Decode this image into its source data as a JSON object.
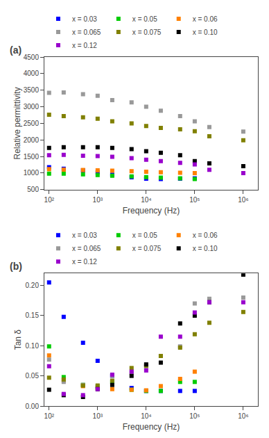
{
  "chart_data": [
    {
      "type": "scatter",
      "title": "(a)",
      "xlabel": "Frequency (Hz)",
      "ylabel": "Relative permittivity",
      "log": "x",
      "grid": false,
      "legend": "top",
      "marker": "square",
      "xlim": [
        80,
        2000000
      ],
      "xticks": [
        {
          "value": 100,
          "label": "10²"
        },
        {
          "value": 1000,
          "label": "10³"
        },
        {
          "value": 10000,
          "label": "10⁴"
        },
        {
          "value": 100000,
          "label": "10⁵"
        },
        {
          "value": 1000000,
          "label": "10⁶"
        }
      ],
      "ylim": [
        500,
        4500
      ],
      "yticks": [
        500,
        1000,
        1500,
        2000,
        2500,
        3000,
        3500,
        4000,
        4500
      ],
      "series": [
        {
          "name": "x = 0.03",
          "color": "#0000FF",
          "x": [
            100,
            200,
            500,
            1000,
            2000,
            5000,
            10000,
            20000,
            50000,
            100000
          ],
          "values": [
            1175,
            1130,
            1080,
            1020,
            950,
            870,
            830,
            820,
            830,
            840
          ]
        },
        {
          "name": "x = 0.05",
          "color": "#00CC00",
          "x": [
            100,
            200,
            500,
            1000,
            2000,
            5000,
            10000,
            20000,
            50000,
            100000
          ],
          "values": [
            980,
            980,
            960,
            940,
            920,
            900,
            880,
            860,
            840,
            820
          ]
        },
        {
          "name": "x = 0.06",
          "color": "#FF8000",
          "x": [
            100,
            200,
            500,
            1000,
            2000,
            5000,
            10000,
            20000,
            50000,
            100000
          ],
          "values": [
            1120,
            1105,
            1090,
            1080,
            1070,
            1055,
            1040,
            1025,
            1010,
            1000
          ]
        },
        {
          "name": "x = 0.065",
          "color": "#999999",
          "x": [
            100,
            200,
            500,
            1000,
            2000,
            5000,
            10000,
            20000,
            50000,
            100000,
            200000,
            1000000
          ],
          "values": [
            3420,
            3430,
            3380,
            3330,
            3200,
            3130,
            3000,
            2880,
            2720,
            2560,
            2390,
            2250
          ]
        },
        {
          "name": "x = 0.075",
          "color": "#808000",
          "x": [
            100,
            200,
            500,
            1000,
            2000,
            5000,
            10000,
            20000,
            50000,
            100000,
            200000,
            1000000
          ],
          "values": [
            2760,
            2720,
            2680,
            2640,
            2560,
            2500,
            2420,
            2360,
            2320,
            2260,
            2110,
            1990
          ]
        },
        {
          "name": "x = 0.10",
          "color": "#000000",
          "x": [
            100,
            200,
            500,
            1000,
            2000,
            5000,
            10000,
            20000,
            50000,
            100000,
            200000,
            1000000
          ],
          "values": [
            1760,
            1780,
            1780,
            1780,
            1760,
            1720,
            1660,
            1610,
            1540,
            1360,
            1290,
            1210
          ]
        },
        {
          "name": "x = 0.12",
          "color": "#9900CC",
          "x": [
            100,
            200,
            500,
            1000,
            2000,
            5000,
            10000,
            20000,
            50000,
            100000,
            200000,
            1000000
          ],
          "values": [
            1540,
            1550,
            1520,
            1510,
            1490,
            1450,
            1400,
            1360,
            1310,
            1260,
            1100,
            1000
          ]
        }
      ]
    },
    {
      "type": "scatter",
      "title": "(b)",
      "xlabel": "Frequency (Hz)",
      "ylabel": "Tan δ",
      "log": "x",
      "grid": false,
      "legend": "top",
      "marker": "square",
      "xlim": [
        80,
        2000000
      ],
      "xticks": [
        {
          "value": 100,
          "label": "10²"
        },
        {
          "value": 1000,
          "label": "10³"
        },
        {
          "value": 10000,
          "label": "10⁴"
        },
        {
          "value": 100000,
          "label": "10⁵"
        },
        {
          "value": 1000000,
          "label": "10⁶"
        }
      ],
      "ylim": [
        0.0,
        0.22
      ],
      "yticks": [
        {
          "value": 0.0,
          "label": "0.00"
        },
        0.05,
        {
          "value": 0.1,
          "label": "0.10"
        },
        0.15,
        {
          "value": 0.2,
          "label": "0.20"
        }
      ],
      "series": [
        {
          "name": "x = 0.03",
          "color": "#0000FF",
          "x": [
            100,
            200,
            500,
            1000,
            2000,
            5000,
            10000,
            20000,
            50000,
            100000
          ],
          "values": [
            0.205,
            0.148,
            0.105,
            0.075,
            0.05,
            0.03,
            0.025,
            0.025,
            0.025,
            0.025
          ]
        },
        {
          "name": "x = 0.05",
          "color": "#00CC00",
          "x": [
            100,
            200,
            500,
            1000,
            2000,
            5000,
            10000,
            20000,
            50000,
            100000
          ],
          "values": [
            0.099,
            0.048,
            0.035,
            0.032,
            0.04,
            0.027,
            0.025,
            0.025,
            0.04,
            0.04
          ]
        },
        {
          "name": "x = 0.06",
          "color": "#FF8000",
          "x": [
            100,
            200,
            500,
            1000,
            2000,
            5000,
            10000,
            20000,
            50000,
            100000
          ],
          "values": [
            0.084,
            0.042,
            0.033,
            0.03,
            0.028,
            0.027,
            0.026,
            0.033,
            0.045,
            0.057
          ]
        },
        {
          "name": "x = 0.065",
          "color": "#999999",
          "x": [
            100,
            200,
            500,
            1000,
            2000,
            5000,
            10000,
            20000,
            50000,
            100000,
            200000,
            1000000
          ],
          "values": [
            0.077,
            0.04,
            0.035,
            0.033,
            0.05,
            0.055,
            0.065,
            0.083,
            0.099,
            0.17,
            0.178,
            0.18
          ]
        },
        {
          "name": "x = 0.075",
          "color": "#808000",
          "x": [
            100,
            200,
            500,
            1000,
            2000,
            5000,
            10000,
            20000,
            50000,
            100000,
            200000,
            1000000
          ],
          "values": [
            0.047,
            0.044,
            0.034,
            0.034,
            0.042,
            0.063,
            0.067,
            0.083,
            0.097,
            0.119,
            0.138,
            0.156
          ]
        },
        {
          "name": "x = 0.10",
          "color": "#000000",
          "x": [
            100,
            200,
            500,
            1000,
            2000,
            5000,
            10000,
            20000,
            50000,
            100000,
            200000,
            1000000
          ],
          "values": [
            0.027,
            0.018,
            0.015,
            0.028,
            0.035,
            0.05,
            0.069,
            0.072,
            0.137,
            0.15,
            0.172,
            0.218
          ]
        },
        {
          "name": "x = 0.12",
          "color": "#9900CC",
          "x": [
            100,
            200,
            500,
            1000,
            2000,
            5000,
            10000,
            20000,
            50000,
            100000,
            200000,
            1000000
          ],
          "values": [
            0.066,
            0.02,
            0.018,
            0.028,
            0.052,
            0.057,
            0.059,
            0.115,
            0.115,
            0.155,
            0.172,
            0.172
          ]
        }
      ]
    }
  ]
}
